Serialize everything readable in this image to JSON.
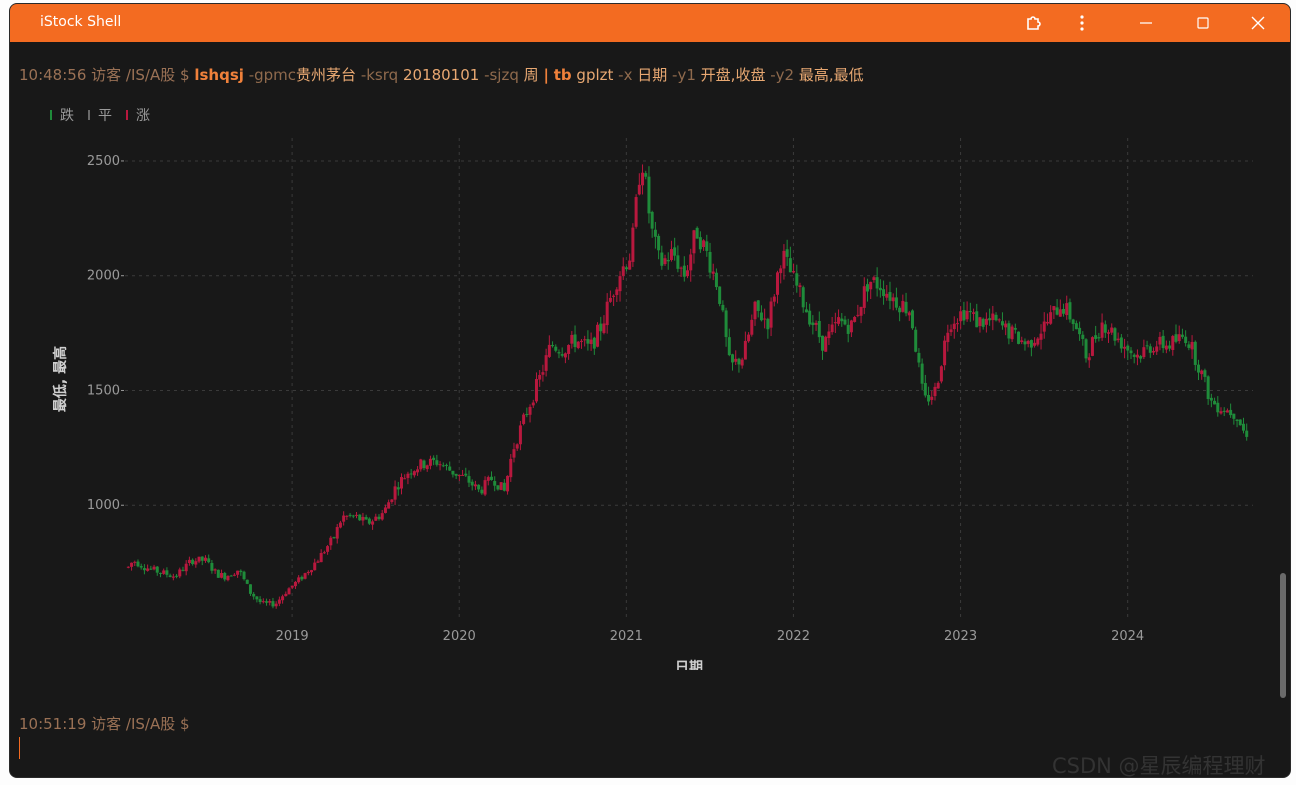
{
  "window": {
    "title": "iStock Shell",
    "accent": "#f36b21"
  },
  "command": {
    "time": "10:48:56",
    "prompt": "访客 /IS/A股 $",
    "name": "lshqsj",
    "flag_gpmc": "-gpmc",
    "val_gpmc": "贵州茅台",
    "flag_ksrq": "-ksrq",
    "val_ksrq": "20180101",
    "flag_sjzq": "-sjzq",
    "val_sjzq": "周",
    "pipe": "|",
    "pipe_cmd": "tb",
    "sub": "gplzt",
    "flag_x": "-x",
    "val_x": "日期",
    "flag_y1": "-y1",
    "val_y1": "开盘,收盘",
    "flag_y2": "-y2",
    "val_y2": "最高,最低"
  },
  "prompt2": {
    "time": "10:51:19",
    "prompt": "访客 /IS/A股 $"
  },
  "watermark": "CSDN @星辰编程理财",
  "icons": [
    "extension-icon",
    "more-vert-icon",
    "minimize-icon",
    "maximize-icon",
    "close-icon"
  ],
  "chart_data": {
    "type": "candlestick",
    "legend": [
      {
        "label": "跌",
        "color": "#1f8b3a"
      },
      {
        "label": "平",
        "color": "#6a6a6a"
      },
      {
        "label": "涨",
        "color": "#b8183e"
      }
    ],
    "xlabel": "日期",
    "ylabel": "最低, 最高",
    "x_ticks": [
      "2019",
      "2020",
      "2021",
      "2022",
      "2023",
      "2024"
    ],
    "y_ticks": [
      1000,
      1500,
      2000,
      2500
    ],
    "xlim": [
      2018.0,
      2024.75
    ],
    "ylim": [
      500,
      2600
    ],
    "grid": true,
    "anchors": [
      [
        2018.02,
        730
      ],
      [
        2018.05,
        760
      ],
      [
        2018.12,
        730
      ],
      [
        2018.2,
        710
      ],
      [
        2018.3,
        690
      ],
      [
        2018.4,
        760
      ],
      [
        2018.48,
        760
      ],
      [
        2018.55,
        700
      ],
      [
        2018.6,
        690
      ],
      [
        2018.68,
        720
      ],
      [
        2018.75,
        620
      ],
      [
        2018.82,
        570
      ],
      [
        2018.9,
        570
      ],
      [
        2018.97,
        630
      ],
      [
        2019.05,
        680
      ],
      [
        2019.15,
        760
      ],
      [
        2019.25,
        860
      ],
      [
        2019.3,
        950
      ],
      [
        2019.38,
        950
      ],
      [
        2019.45,
        920
      ],
      [
        2019.55,
        970
      ],
      [
        2019.62,
        1080
      ],
      [
        2019.7,
        1150
      ],
      [
        2019.78,
        1180
      ],
      [
        2019.87,
        1190
      ],
      [
        2019.95,
        1150
      ],
      [
        2020.05,
        1110
      ],
      [
        2020.12,
        1060
      ],
      [
        2020.2,
        1120
      ],
      [
        2020.27,
        1060
      ],
      [
        2020.32,
        1240
      ],
      [
        2020.4,
        1400
      ],
      [
        2020.48,
        1550
      ],
      [
        2020.55,
        1700
      ],
      [
        2020.62,
        1680
      ],
      [
        2020.7,
        1720
      ],
      [
        2020.78,
        1680
      ],
      [
        2020.85,
        1780
      ],
      [
        2020.95,
        2000
      ],
      [
        2021.03,
        2100
      ],
      [
        2021.09,
        2530
      ],
      [
        2021.15,
        2200
      ],
      [
        2021.2,
        2050
      ],
      [
        2021.28,
        2100
      ],
      [
        2021.35,
        2000
      ],
      [
        2021.42,
        2200
      ],
      [
        2021.48,
        2100
      ],
      [
        2021.55,
        1950
      ],
      [
        2021.62,
        1600
      ],
      [
        2021.7,
        1650
      ],
      [
        2021.77,
        1850
      ],
      [
        2021.85,
        1800
      ],
      [
        2021.93,
        2100
      ],
      [
        2021.99,
        2000
      ],
      [
        2022.08,
        1850
      ],
      [
        2022.18,
        1700
      ],
      [
        2022.27,
        1800
      ],
      [
        2022.35,
        1780
      ],
      [
        2022.45,
        1980
      ],
      [
        2022.52,
        1960
      ],
      [
        2022.6,
        1900
      ],
      [
        2022.7,
        1850
      ],
      [
        2022.78,
        1450
      ],
      [
        2022.85,
        1500
      ],
      [
        2022.93,
        1800
      ],
      [
        2023.03,
        1850
      ],
      [
        2023.1,
        1800
      ],
      [
        2023.2,
        1800
      ],
      [
        2023.3,
        1750
      ],
      [
        2023.4,
        1700
      ],
      [
        2023.5,
        1780
      ],
      [
        2023.6,
        1880
      ],
      [
        2023.68,
        1800
      ],
      [
        2023.75,
        1650
      ],
      [
        2023.85,
        1800
      ],
      [
        2023.95,
        1720
      ],
      [
        2024.05,
        1650
      ],
      [
        2024.15,
        1700
      ],
      [
        2024.25,
        1700
      ],
      [
        2024.35,
        1740
      ],
      [
        2024.42,
        1620
      ],
      [
        2024.5,
        1450
      ],
      [
        2024.58,
        1420
      ],
      [
        2024.65,
        1400
      ],
      [
        2024.72,
        1280
      ]
    ]
  }
}
